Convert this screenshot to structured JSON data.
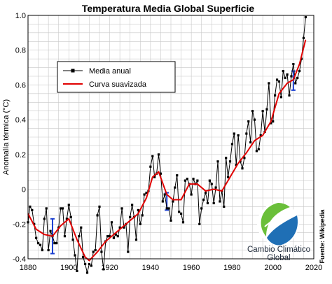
{
  "chart_data": {
    "type": "line",
    "title": "Temperatura Media Global Superficie",
    "ylabel": "Anomalía térmica (°C)",
    "xlabel": "",
    "xlim": [
      1880,
      2020
    ],
    "ylim": [
      -0.4,
      1.0
    ],
    "x_ticks": [
      "1880",
      "1900",
      "1920",
      "1940",
      "1960",
      "1980",
      "2000",
      "2020"
    ],
    "y_ticks": [
      "-0.4",
      "-0.2",
      "0",
      "0.2",
      "0.4",
      "0.6",
      "0.8",
      "1.0"
    ],
    "grid": true,
    "legend_position": "top-left",
    "source_note": "Fuente: Wikipedia",
    "series": [
      {
        "name": "Media anual",
        "color": "#000000",
        "marker": "square",
        "x": [
          1880,
          1881,
          1882,
          1883,
          1884,
          1885,
          1886,
          1887,
          1888,
          1889,
          1890,
          1891,
          1892,
          1893,
          1894,
          1895,
          1896,
          1897,
          1898,
          1899,
          1900,
          1901,
          1902,
          1903,
          1904,
          1905,
          1906,
          1907,
          1908,
          1909,
          1910,
          1911,
          1912,
          1913,
          1914,
          1915,
          1916,
          1917,
          1918,
          1919,
          1920,
          1921,
          1922,
          1923,
          1924,
          1925,
          1926,
          1927,
          1928,
          1929,
          1930,
          1931,
          1932,
          1933,
          1934,
          1935,
          1936,
          1937,
          1938,
          1939,
          1940,
          1941,
          1942,
          1943,
          1944,
          1945,
          1946,
          1947,
          1948,
          1949,
          1950,
          1951,
          1952,
          1953,
          1954,
          1955,
          1956,
          1957,
          1958,
          1959,
          1960,
          1961,
          1962,
          1963,
          1964,
          1965,
          1966,
          1967,
          1968,
          1969,
          1970,
          1971,
          1972,
          1973,
          1974,
          1975,
          1976,
          1977,
          1978,
          1979,
          1980,
          1981,
          1982,
          1983,
          1984,
          1985,
          1986,
          1987,
          1988,
          1989,
          1990,
          1991,
          1992,
          1993,
          1994,
          1995,
          1996,
          1997,
          1998,
          1999,
          2000,
          2001,
          2002,
          2003,
          2004,
          2005,
          2006,
          2007,
          2008,
          2009,
          2010,
          2011,
          2012,
          2013,
          2014,
          2015,
          2016
        ],
        "values": [
          -0.19,
          -0.1,
          -0.12,
          -0.2,
          -0.28,
          -0.31,
          -0.32,
          -0.35,
          -0.17,
          -0.11,
          -0.35,
          -0.24,
          -0.27,
          -0.31,
          -0.31,
          -0.22,
          -0.11,
          -0.11,
          -0.27,
          -0.17,
          -0.09,
          -0.16,
          -0.29,
          -0.38,
          -0.47,
          -0.27,
          -0.22,
          -0.39,
          -0.43,
          -0.48,
          -0.43,
          -0.44,
          -0.36,
          -0.35,
          -0.15,
          -0.1,
          -0.36,
          -0.46,
          -0.3,
          -0.27,
          -0.27,
          -0.19,
          -0.28,
          -0.26,
          -0.27,
          -0.22,
          -0.11,
          -0.22,
          -0.2,
          -0.36,
          -0.16,
          -0.09,
          -0.16,
          -0.29,
          -0.12,
          -0.2,
          -0.15,
          -0.03,
          -0.02,
          -0.01,
          0.13,
          0.19,
          0.07,
          0.09,
          0.2,
          0.09,
          -0.07,
          -0.03,
          -0.11,
          -0.11,
          -0.18,
          -0.07,
          0.01,
          0.08,
          -0.13,
          -0.14,
          -0.19,
          0.05,
          0.06,
          0.03,
          -0.03,
          0.06,
          0.03,
          0.05,
          -0.2,
          -0.11,
          -0.06,
          -0.02,
          -0.08,
          0.05,
          0.03,
          -0.08,
          0.01,
          0.16,
          -0.07,
          -0.01,
          -0.1,
          0.18,
          0.07,
          0.16,
          0.26,
          0.32,
          0.14,
          0.31,
          0.16,
          0.12,
          0.18,
          0.32,
          0.39,
          0.27,
          0.45,
          0.4,
          0.22,
          0.23,
          0.31,
          0.45,
          0.33,
          0.46,
          0.61,
          0.38,
          0.39,
          0.54,
          0.63,
          0.62,
          0.53,
          0.68,
          0.64,
          0.66,
          0.54,
          0.65,
          0.72,
          0.61,
          0.64,
          0.68,
          0.75,
          0.87,
          0.99
        ]
      },
      {
        "name": "Curva suavizada",
        "color": "#e00000",
        "x": [
          1880,
          1884,
          1888,
          1892,
          1896,
          1900,
          1904,
          1908,
          1910,
          1914,
          1918,
          1922,
          1926,
          1930,
          1934,
          1938,
          1941,
          1944,
          1948,
          1951,
          1955,
          1959,
          1963,
          1967,
          1971,
          1975,
          1979,
          1983,
          1987,
          1991,
          1995,
          1999,
          2003,
          2007,
          2010,
          2013,
          2016
        ],
        "values": [
          -0.14,
          -0.23,
          -0.26,
          -0.27,
          -0.21,
          -0.17,
          -0.29,
          -0.39,
          -0.41,
          -0.36,
          -0.3,
          -0.26,
          -0.22,
          -0.18,
          -0.14,
          -0.05,
          0.07,
          0.1,
          -0.03,
          -0.06,
          -0.06,
          0.03,
          0.03,
          -0.01,
          0.0,
          -0.01,
          0.07,
          0.15,
          0.21,
          0.28,
          0.31,
          0.39,
          0.55,
          0.61,
          0.63,
          0.72,
          0.86
        ]
      }
    ],
    "error_bars": [
      {
        "x": 1892,
        "low": -0.37,
        "high": -0.17
      },
      {
        "x": 1948,
        "low": -0.12,
        "high": -0.02
      },
      {
        "x": 2010,
        "low": 0.57,
        "high": 0.68
      }
    ]
  },
  "logo": {
    "line1": "Cambio Climático",
    "line2": "Global"
  }
}
